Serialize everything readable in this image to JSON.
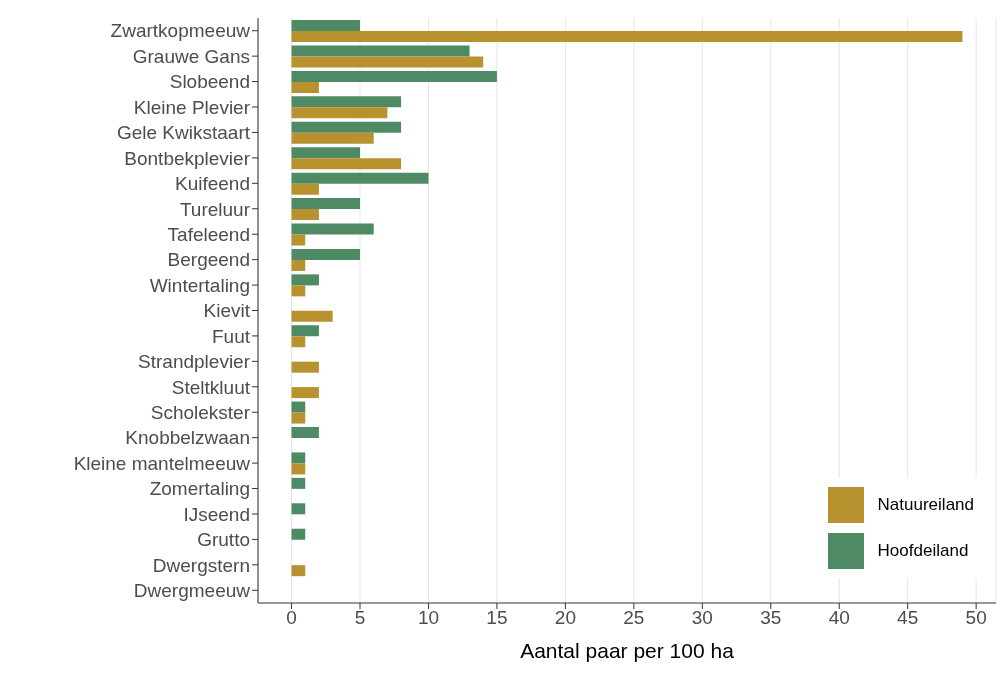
{
  "chart_data": {
    "type": "bar",
    "orientation": "horizontal",
    "xlabel": "Aantal paar per 100 ha",
    "categories": [
      "Zwartkopmeeuw",
      "Grauwe Gans",
      "Slobeend",
      "Kleine Plevier",
      "Gele Kwikstaart",
      "Bontbekplevier",
      "Kuifeend",
      "Tureluur",
      "Tafeleend",
      "Bergeend",
      "Wintertaling",
      "Kievit",
      "Fuut",
      "Strandplevier",
      "Steltkluut",
      "Scholekster",
      "Knobbelzwaan",
      "Kleine mantelmeeuw",
      "Zomertaling",
      "IJseend",
      "Grutto",
      "Dwergstern",
      "Dwergmeeuw"
    ],
    "series": [
      {
        "name": "Natuureiland",
        "color": "#b8922e",
        "values": [
          49,
          14,
          2,
          7,
          6,
          8,
          2,
          2,
          1,
          1,
          1,
          3,
          1,
          2,
          2,
          1,
          0,
          1,
          0,
          0,
          0,
          1,
          0
        ]
      },
      {
        "name": "Hoofdeiland",
        "color": "#4e8a63",
        "values": [
          5,
          13,
          15,
          8,
          8,
          5,
          10,
          5,
          6,
          5,
          2,
          0,
          2,
          0,
          0,
          1,
          2,
          1,
          1,
          1,
          1,
          0,
          0
        ]
      }
    ],
    "xlim": [
      -2.45,
      51.45
    ],
    "xticks": [
      0,
      5,
      10,
      15,
      20,
      25,
      30,
      35,
      40,
      45,
      50
    ],
    "grid": "x",
    "legend": "bottom right"
  }
}
